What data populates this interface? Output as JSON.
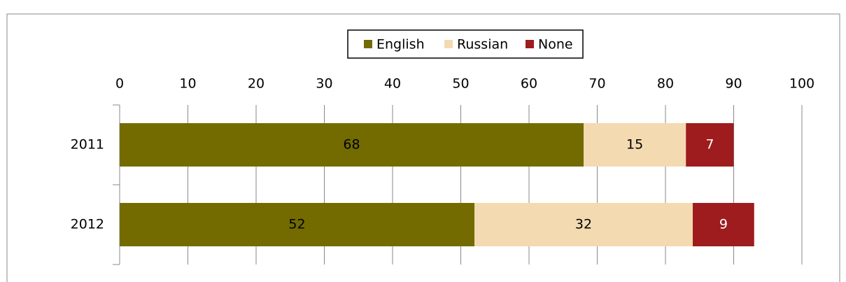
{
  "chart_data": {
    "type": "stacked-bar-horizontal",
    "categories": [
      "2011",
      "2012"
    ],
    "series": [
      {
        "name": "English",
        "color": "#736b00",
        "values": [
          68,
          52
        ]
      },
      {
        "name": "Russian",
        "color": "#f3dab0",
        "values": [
          15,
          32
        ]
      },
      {
        "name": "None",
        "color": "#9e1b1e",
        "values": [
          7,
          9
        ]
      }
    ],
    "xlim": [
      0,
      100
    ],
    "xticks": [
      0,
      10,
      20,
      30,
      40,
      50,
      60,
      70,
      80,
      90,
      100
    ],
    "grid": true,
    "legend": "top"
  }
}
